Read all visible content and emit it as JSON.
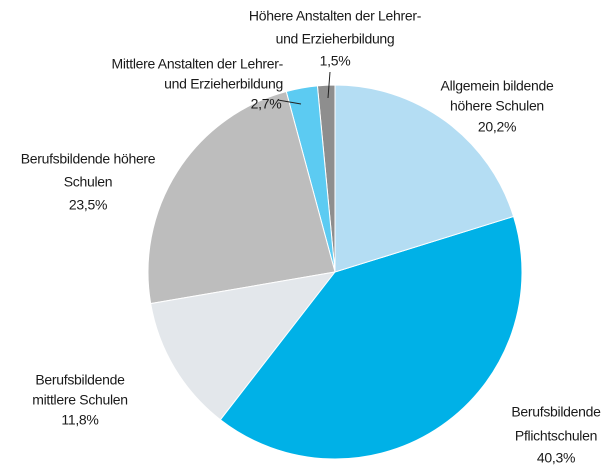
{
  "chart_data": {
    "type": "pie",
    "categories": [
      [
        "Allgemein bildende",
        "höhere Schulen"
      ],
      [
        "Berufsbildende",
        "Pflichtschulen"
      ],
      [
        "Berufsbildende",
        "mittlere Schulen"
      ],
      [
        "Berufsbildende höhere",
        "Schulen"
      ],
      [
        "Mittlere Anstalten der Lehrer-",
        "und Erzieherbildung"
      ],
      [
        "Höhere Anstalten der Lehrer-",
        "und Erzieherbildung"
      ]
    ],
    "values": [
      20.2,
      40.3,
      11.8,
      23.5,
      2.7,
      1.5
    ],
    "value_labels": [
      "20,2%",
      "40,3%",
      "11,8%",
      "23,5%",
      "2,7%",
      "1,5%"
    ],
    "colors": [
      "#b4ddf3",
      "#00b1e7",
      "#e3e7eb",
      "#bdbdbd",
      "#5ccbf2",
      "#8e8e8e"
    ]
  }
}
